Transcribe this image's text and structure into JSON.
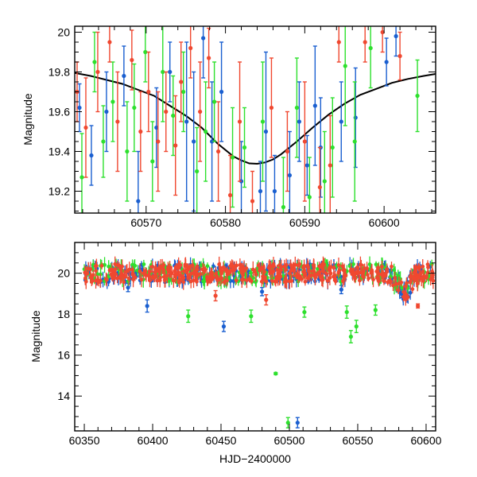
{
  "chart_data": [
    {
      "type": "scatter",
      "title": "",
      "xlabel": "",
      "ylabel": "Magnitude",
      "xlim": [
        60561,
        60606.5
      ],
      "ylim": [
        20.03,
        19.09
      ],
      "y_inverted": true,
      "xticks": [
        60570,
        60580,
        60590,
        60600
      ],
      "yticks": [
        19.2,
        19.4,
        19.6,
        19.8,
        20
      ],
      "grid": false,
      "legend": "none",
      "series": [
        {
          "color": "#1a5fd0",
          "points": [
            {
              "x": 60561.6,
              "y": 19.62,
              "e": 0.12
            },
            {
              "x": 60563.1,
              "y": 19.38,
              "e": 0.15
            },
            {
              "x": 60565.0,
              "y": 19.6,
              "e": 0.2
            },
            {
              "x": 60567.2,
              "y": 19.78,
              "e": 0.15
            },
            {
              "x": 60569.0,
              "y": 19.15,
              "e": 0.25
            },
            {
              "x": 60571.3,
              "y": 19.52,
              "e": 0.2
            },
            {
              "x": 60573.0,
              "y": 19.8,
              "e": 0.15
            },
            {
              "x": 60575.1,
              "y": 19.55,
              "e": 0.4
            },
            {
              "x": 60576.0,
              "y": 19.45,
              "e": 0.35
            },
            {
              "x": 60577.2,
              "y": 19.97,
              "e": 0.2
            },
            {
              "x": 60578.3,
              "y": 19.45,
              "e": 0.3
            },
            {
              "x": 60579.5,
              "y": 19.7,
              "e": 0.25
            },
            {
              "x": 60582.0,
              "y": 19.25,
              "e": 0.2
            },
            {
              "x": 60584.4,
              "y": 19.2,
              "e": 0.15
            },
            {
              "x": 60585.1,
              "y": 19.5,
              "e": 0.4
            },
            {
              "x": 60586.2,
              "y": 19.2,
              "e": 0.18
            },
            {
              "x": 60588.1,
              "y": 19.28,
              "e": 0.22
            },
            {
              "x": 60589.3,
              "y": 19.55,
              "e": 0.2
            },
            {
              "x": 60590.3,
              "y": 19.33,
              "e": 0.15
            },
            {
              "x": 60591.3,
              "y": 19.63,
              "e": 0.3
            },
            {
              "x": 60592.0,
              "y": 19.42,
              "e": 0.25
            },
            {
              "x": 60594.6,
              "y": 19.55,
              "e": 0.2
            },
            {
              "x": 60596.4,
              "y": 19.57,
              "e": 0.25
            },
            {
              "x": 60600.3,
              "y": 19.85,
              "e": 0.12
            },
            {
              "x": 60601.5,
              "y": 19.98,
              "e": 0.1
            }
          ]
        },
        {
          "color": "#2de02d",
          "points": [
            {
              "x": 60561.9,
              "y": 19.27,
              "e": 0.22
            },
            {
              "x": 60563.5,
              "y": 19.85,
              "e": 0.15
            },
            {
              "x": 60564.6,
              "y": 19.45,
              "e": 0.18
            },
            {
              "x": 60565.8,
              "y": 19.65,
              "e": 0.2
            },
            {
              "x": 60567.6,
              "y": 19.4,
              "e": 0.25
            },
            {
              "x": 60568.5,
              "y": 19.62,
              "e": 0.22
            },
            {
              "x": 60569.9,
              "y": 19.9,
              "e": 0.15
            },
            {
              "x": 60570.8,
              "y": 19.35,
              "e": 0.2
            },
            {
              "x": 60572.1,
              "y": 19.8,
              "e": 0.25
            },
            {
              "x": 60573.4,
              "y": 19.58,
              "e": 0.2
            },
            {
              "x": 60574.7,
              "y": 19.7,
              "e": 0.2
            },
            {
              "x": 60576.4,
              "y": 19.3,
              "e": 0.22
            },
            {
              "x": 60577.5,
              "y": 19.5,
              "e": 0.25
            },
            {
              "x": 60578.6,
              "y": 19.65,
              "e": 0.2
            },
            {
              "x": 60580.9,
              "y": 19.37,
              "e": 0.25
            },
            {
              "x": 60582.4,
              "y": 19.42,
              "e": 0.2
            },
            {
              "x": 60584.7,
              "y": 19.55,
              "e": 0.3
            },
            {
              "x": 60587.3,
              "y": 19.12,
              "e": 0.25
            },
            {
              "x": 60589.0,
              "y": 19.62,
              "e": 0.25
            },
            {
              "x": 60590.6,
              "y": 19.17,
              "e": 0.2
            },
            {
              "x": 60592.5,
              "y": 19.25,
              "e": 0.25
            },
            {
              "x": 60593.5,
              "y": 19.42,
              "e": 0.25
            },
            {
              "x": 60595.1,
              "y": 19.83,
              "e": 0.3
            },
            {
              "x": 60596.3,
              "y": 19.45,
              "e": 0.3
            },
            {
              "x": 60598.3,
              "y": 19.92,
              "e": 0.2
            },
            {
              "x": 60604.2,
              "y": 19.68,
              "e": 0.18
            }
          ]
        },
        {
          "color": "#f04830",
          "points": [
            {
              "x": 60561.3,
              "y": 19.7,
              "e": 0.15
            },
            {
              "x": 60562.4,
              "y": 19.52,
              "e": 0.25
            },
            {
              "x": 60563.9,
              "y": 19.8,
              "e": 0.2
            },
            {
              "x": 60565.4,
              "y": 19.95,
              "e": 0.1
            },
            {
              "x": 60566.4,
              "y": 19.55,
              "e": 0.25
            },
            {
              "x": 60568.2,
              "y": 19.86,
              "e": 0.15
            },
            {
              "x": 60569.3,
              "y": 19.5,
              "e": 0.2
            },
            {
              "x": 60570.3,
              "y": 19.7,
              "e": 0.2
            },
            {
              "x": 60571.5,
              "y": 19.45,
              "e": 0.25
            },
            {
              "x": 60572.5,
              "y": 19.6,
              "e": 0.2
            },
            {
              "x": 60573.7,
              "y": 19.43,
              "e": 0.25
            },
            {
              "x": 60574.4,
              "y": 19.75,
              "e": 0.2
            },
            {
              "x": 60575.6,
              "y": 19.92,
              "e": 0.15
            },
            {
              "x": 60576.8,
              "y": 19.6,
              "e": 0.25
            },
            {
              "x": 60577.9,
              "y": 19.87,
              "e": 0.15
            },
            {
              "x": 60579.1,
              "y": 19.4,
              "e": 0.25
            },
            {
              "x": 60580.6,
              "y": 19.18,
              "e": 0.2
            },
            {
              "x": 60581.8,
              "y": 19.55,
              "e": 0.3
            },
            {
              "x": 60583.4,
              "y": 19.15,
              "e": 0.15
            },
            {
              "x": 60585.8,
              "y": 19.62,
              "e": 0.25
            },
            {
              "x": 60587.8,
              "y": 19.4,
              "e": 0.2
            },
            {
              "x": 60590.0,
              "y": 19.45,
              "e": 0.3
            },
            {
              "x": 60591.9,
              "y": 19.22,
              "e": 0.2
            },
            {
              "x": 60593.2,
              "y": 19.33,
              "e": 0.25
            },
            {
              "x": 60594.3,
              "y": 19.95,
              "e": 0.1
            },
            {
              "x": 60597.6,
              "y": 19.95,
              "e": 0.1
            },
            {
              "x": 60599.8,
              "y": 20.0,
              "e": 0.1
            },
            {
              "x": 60602.0,
              "y": 19.88,
              "e": 0.12
            }
          ]
        }
      ],
      "model": {
        "color": "#000000",
        "x": [
          60561,
          60563,
          60565,
          60567,
          60569,
          60571,
          60573,
          60575,
          60577,
          60579,
          60581,
          60582,
          60583,
          60584,
          60585,
          60586,
          60587,
          60589,
          60591,
          60593,
          60595,
          60597,
          60599,
          60601,
          60603,
          60605,
          60606.5
        ],
        "y": [
          19.795,
          19.78,
          19.76,
          19.74,
          19.71,
          19.68,
          19.63,
          19.58,
          19.52,
          19.44,
          19.375,
          19.355,
          19.34,
          19.338,
          19.345,
          19.36,
          19.385,
          19.45,
          19.52,
          19.585,
          19.64,
          19.685,
          19.715,
          19.745,
          19.765,
          19.78,
          19.79
        ]
      }
    },
    {
      "type": "scatter",
      "title": "",
      "xlabel": "HJD−2400000",
      "ylabel": "Magnitude",
      "xlim": [
        60343,
        60607
      ],
      "ylim": [
        21.5,
        12.3
      ],
      "y_inverted": true,
      "xticks": [
        60350,
        60400,
        60450,
        60500,
        60550,
        60600
      ],
      "yticks": [
        14,
        16,
        18,
        20
      ],
      "grid": false,
      "legend": "none",
      "series": [
        {
          "color": "#1a5fd0",
          "points": [
            {
              "x": 60506,
              "y": 12.7,
              "e": 0.25
            },
            {
              "x": 60452,
              "y": 17.4,
              "e": 0.25
            },
            {
              "x": 60396,
              "y": 18.4,
              "e": 0.3
            },
            {
              "x": 60382,
              "y": 19.3,
              "e": 0.2
            },
            {
              "x": 60480,
              "y": 19.1,
              "e": 0.2
            },
            {
              "x": 60538,
              "y": 19.2,
              "e": 0.2
            },
            {
              "x": 60582,
              "y": 19.0,
              "e": 0.2
            }
          ]
        },
        {
          "color": "#2de02d",
          "points": [
            {
              "x": 60499,
              "y": 12.7,
              "e": 0.25
            },
            {
              "x": 60490,
              "y": 15.1,
              "e": 0.05
            },
            {
              "x": 60545,
              "y": 16.9,
              "e": 0.3
            },
            {
              "x": 60549,
              "y": 17.4,
              "e": 0.3
            },
            {
              "x": 60426,
              "y": 17.9,
              "e": 0.3
            },
            {
              "x": 60472,
              "y": 17.9,
              "e": 0.3
            },
            {
              "x": 60542,
              "y": 18.1,
              "e": 0.3
            },
            {
              "x": 60511,
              "y": 18.1,
              "e": 0.25
            },
            {
              "x": 60563,
              "y": 18.2,
              "e": 0.25
            }
          ]
        },
        {
          "color": "#f04830",
          "points": [
            {
              "x": 60446,
              "y": 18.9,
              "e": 0.25
            },
            {
              "x": 60483,
              "y": 18.7,
              "e": 0.25
            },
            {
              "x": 60594,
              "y": 18.4,
              "e": 0.1
            }
          ]
        }
      ]
    }
  ]
}
